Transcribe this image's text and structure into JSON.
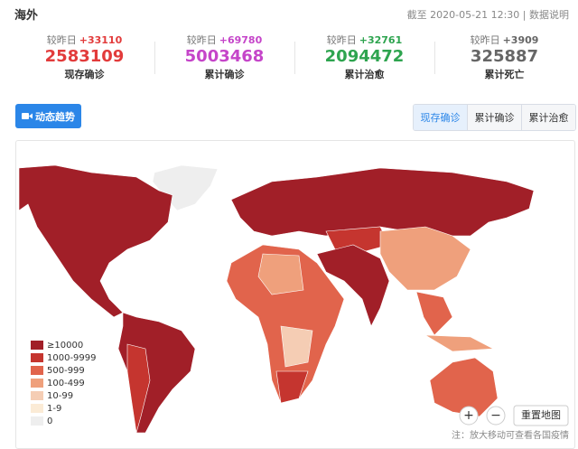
{
  "header": {
    "title": "海外",
    "timestamp": "截至 2020-05-21 12:30",
    "info_link": "数据说明"
  },
  "stats": [
    {
      "delta_label": "较昨日",
      "delta": "+33110",
      "value": "2583109",
      "label": "现存确诊",
      "color": "#e23b3b"
    },
    {
      "delta_label": "较昨日",
      "delta": "+69780",
      "value": "5003468",
      "label": "累计确诊",
      "color": "#c545c9"
    },
    {
      "delta_label": "较昨日",
      "delta": "+32761",
      "value": "2094472",
      "label": "累计治愈",
      "color": "#2ea44f"
    },
    {
      "delta_label": "较昨日",
      "delta": "+3909",
      "value": "325887",
      "label": "累计死亡",
      "color": "#666666"
    }
  ],
  "trend_button": "动态趋势",
  "tabs": [
    {
      "label": "现存确诊",
      "active": true
    },
    {
      "label": "累计确诊"
    },
    {
      "label": "累计治愈"
    }
  ],
  "map": {
    "legend": [
      {
        "label": "≥10000",
        "color": "#a11f28"
      },
      {
        "label": "1000-9999",
        "color": "#c5352f"
      },
      {
        "label": "500-999",
        "color": "#e1644c"
      },
      {
        "label": "100-499",
        "color": "#efa07c"
      },
      {
        "label": "10-99",
        "color": "#f5cdb4"
      },
      {
        "label": "1-9",
        "color": "#fbebd6"
      },
      {
        "label": "0",
        "color": "#eeeeee"
      }
    ],
    "controls": {
      "zoom_in": "+",
      "zoom_out": "−",
      "reset": "重置地图"
    },
    "note": "注：放大移动可查看各国疫情"
  }
}
